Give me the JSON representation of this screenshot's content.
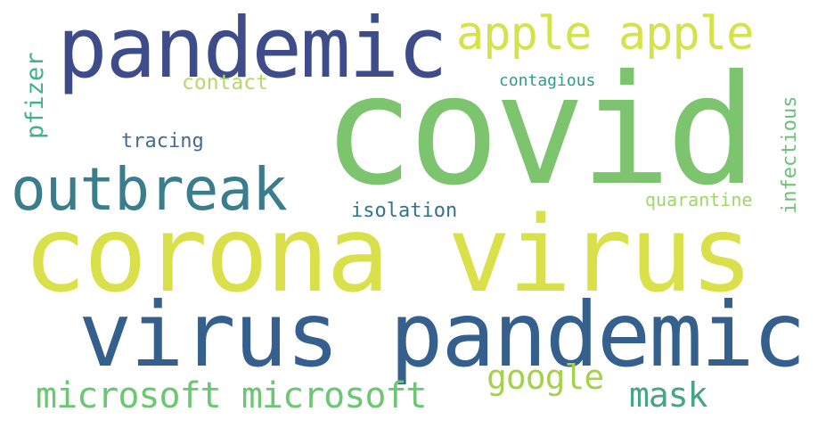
{
  "wordcloud": {
    "words": [
      {
        "text": "covid",
        "color": "#7cc46d"
      },
      {
        "text": "corona virus",
        "color": "#d9e049"
      },
      {
        "text": "virus pandemic",
        "color": "#355f8d"
      },
      {
        "text": "pandemic",
        "color": "#3e4c8a"
      },
      {
        "text": "outbreak",
        "color": "#3a7e8e"
      },
      {
        "text": "apple apple",
        "color": "#d5e34a"
      },
      {
        "text": "microsoft microsoft",
        "color": "#6cc673"
      },
      {
        "text": "google",
        "color": "#a6d24a"
      },
      {
        "text": "mask",
        "color": "#47a681"
      },
      {
        "text": "pfizer",
        "color": "#45af87"
      },
      {
        "text": "contact",
        "color": "#b7d96c"
      },
      {
        "text": "tracing",
        "color": "#466a92"
      },
      {
        "text": "isolation",
        "color": "#36738b"
      },
      {
        "text": "quarantine",
        "color": "#9fd66a"
      },
      {
        "text": "infectious",
        "color": "#6bc07a"
      },
      {
        "text": "contagious",
        "color": "#2e9c89"
      }
    ]
  }
}
